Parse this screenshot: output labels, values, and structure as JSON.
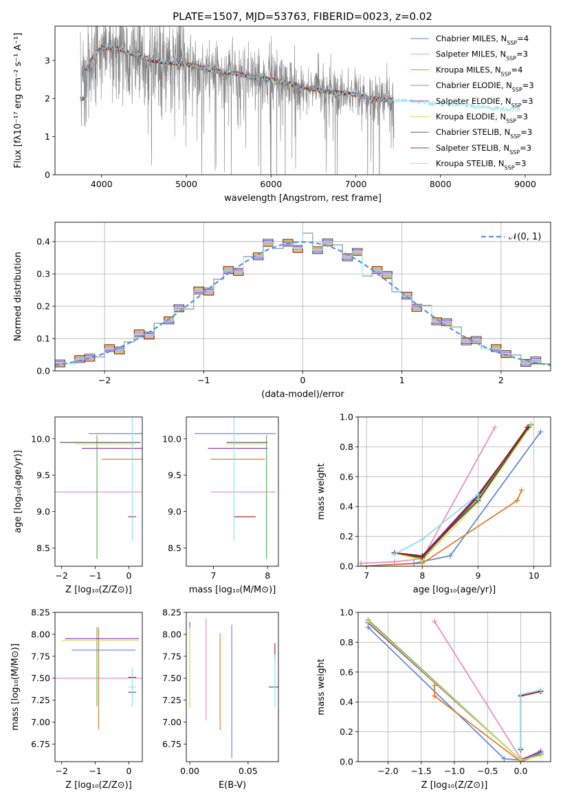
{
  "figure": {
    "title": "PLATE=1507, MJD=53763, FIBERID=0023, z=0.02"
  },
  "colors": {
    "data": "#808080",
    "axes": "#000000",
    "grid": "#b0b0b0",
    "gaussian": "#5b8fd9"
  },
  "models": [
    {
      "name": "Chabrier MILES",
      "nssp": "4",
      "color": "#5b84d8"
    },
    {
      "name": "Salpeter MILES",
      "nssp": "3",
      "color": "#e58ac0"
    },
    {
      "name": "Kroupa MILES",
      "nssp": "4",
      "color": "#dd7722"
    },
    {
      "name": "Chabrier ELODIE",
      "nssp": "3",
      "color": "#55aa55"
    },
    {
      "name": "Salpeter ELODIE",
      "nssp": "3",
      "color": "#8833aa"
    },
    {
      "name": "Kroupa ELODIE",
      "nssp": "3",
      "color": "#d4e060"
    },
    {
      "name": "Chabrier STELIB",
      "nssp": "3",
      "color": "#444444"
    },
    {
      "name": "Salpeter STELIB",
      "nssp": "3",
      "color": "#aa1111"
    },
    {
      "name": "Kroupa STELIB",
      "nssp": "3",
      "color": "#88ddee"
    }
  ],
  "chart_data": [
    {
      "id": "spectrum",
      "type": "line",
      "xlabel": "wavelength [Angstrom, rest frame]",
      "ylabel": "Flux [fλ10⁻¹⁷ erg cm⁻² s⁻¹ A⁻¹]",
      "xlim": [
        3450,
        9300
      ],
      "ylim": [
        0,
        3.9
      ],
      "xticks": [
        "4000",
        "5000",
        "6000",
        "7000",
        "8000",
        "9000"
      ],
      "yticks": [
        "0",
        "1",
        "2",
        "3"
      ],
      "continuum_x": [
        3780,
        3900,
        4000,
        4200,
        4400,
        4600,
        4800,
        5000,
        5200,
        5400,
        5600,
        5800,
        6000,
        6200,
        6400,
        6600,
        6800,
        7000,
        7200,
        7400,
        7600,
        7800,
        8000,
        8200,
        8400,
        8600,
        8800,
        9000
      ],
      "continuum_y": [
        2.6,
        3.1,
        3.35,
        3.3,
        3.15,
        3.0,
        2.95,
        2.9,
        2.8,
        2.7,
        2.65,
        2.55,
        2.5,
        2.4,
        2.3,
        2.2,
        2.15,
        2.1,
        2.0,
        1.95,
        1.95,
        1.9,
        1.85,
        1.85,
        1.8,
        1.75,
        1.72,
        1.75
      ],
      "noisy_range": [
        3750,
        7450
      ],
      "model_range": [
        3750,
        7450
      ],
      "legend": "upper right"
    },
    {
      "id": "residuals",
      "type": "line",
      "xlabel": "(data-model)/error",
      "ylabel": "Normed distribution",
      "xlim": [
        -2.5,
        2.5
      ],
      "ylim": [
        0,
        0.46
      ],
      "xticks": [
        "−2",
        "−1",
        "0",
        "1",
        "2"
      ],
      "yticks": [
        "0.0",
        "0.1",
        "0.2",
        "0.3",
        "0.4"
      ],
      "bin_width": 0.1,
      "bin_start": -2.5,
      "bin_offsets": [
        0,
        -0.005,
        0.004,
        0.01,
        -0.008,
        0.006,
        -0.012,
        0.009,
        -0.003
      ],
      "wiggle": [
        0.002,
        -0.004,
        0.006,
        0.0,
        -0.006,
        0.012,
        -0.01,
        0.004,
        0.015,
        -0.012,
        0.008,
        -0.003,
        0.01,
        -0.015,
        0.02,
        -0.01,
        0.006,
        0.012,
        -0.018,
        0.01,
        -0.005,
        0.02,
        -0.008,
        0.003,
        -0.022,
        0.028,
        -0.02,
        0.01,
        0.015,
        -0.008,
        0.024,
        -0.03,
        0.012,
        0.018,
        -0.01,
        0.004,
        -0.012,
        0.02,
        -0.006,
        0.01,
        0.016,
        -0.01,
        0.008,
        -0.004,
        0.012,
        0.002,
        0.01,
        -0.006,
        0.006,
        0.002
      ],
      "gaussian": {
        "mean": 0,
        "sigma": 1,
        "legend_label": "𝒩(0, 1)"
      },
      "legend": "upper right",
      "grid": true
    },
    {
      "id": "age-vs-Z",
      "type": "scatter",
      "xlabel": "Z [log₁₀(Z/Z⊙)]",
      "ylabel": "age  [log₁₀(age/yr)]",
      "xlim": [
        -2.2,
        0.4
      ],
      "ylim": [
        8.25,
        10.3
      ],
      "xticks": [
        "−2",
        "−1",
        "0"
      ],
      "yticks": [
        "8.5",
        "9.0",
        "9.5",
        "10.0"
      ],
      "points": [
        {
          "model": "Chabrier MILES",
          "x": 0.0,
          "y": 10.07,
          "xerr": 1.2,
          "yerr": 0.0
        },
        {
          "model": "Salpeter MILES",
          "x": -0.9,
          "y": 9.27,
          "xerr": 1.3,
          "yerr": 0.0
        },
        {
          "model": "Kroupa MILES",
          "x": -0.2,
          "y": 9.72,
          "xerr": 0.6,
          "yerr": 0.0
        },
        {
          "model": "Chabrier ELODIE",
          "x": -0.95,
          "y": 9.2,
          "xerr": 0.0,
          "yerr": 0.85
        },
        {
          "model": "Salpeter ELODIE",
          "x": -0.5,
          "y": 9.87,
          "xerr": 0.9,
          "yerr": 0.0
        },
        {
          "model": "Kroupa ELODIE",
          "x": -0.7,
          "y": 9.93,
          "xerr": 0.9,
          "yerr": 0.0
        },
        {
          "model": "Chabrier STELIB",
          "x": -0.85,
          "y": 9.95,
          "xerr": 1.2,
          "yerr": 0.0
        },
        {
          "model": "Salpeter STELIB",
          "x": 0.1,
          "y": 8.93,
          "xerr": 0.12,
          "yerr": 0.0
        },
        {
          "model": "Kroupa STELIB",
          "x": 0.1,
          "y": 9.6,
          "xerr": 0.0,
          "yerr": 1.0
        }
      ]
    },
    {
      "id": "age-vs-mass",
      "type": "scatter",
      "xlabel": "mass [log₁₀(M/M⊙)]",
      "ylabel": "",
      "xlim": [
        6.5,
        8.2
      ],
      "ylim": [
        8.25,
        10.3
      ],
      "xticks": [
        "7",
        "8"
      ],
      "yticks": [
        "8.5",
        "9.0",
        "9.5",
        "10.0"
      ],
      "points": [
        {
          "model": "Chabrier MILES",
          "x": 7.4,
          "y": 10.07,
          "xerr": 0.75,
          "yerr": 0.0
        },
        {
          "model": "Salpeter MILES",
          "x": 7.55,
          "y": 9.27,
          "xerr": 0.6,
          "yerr": 0.0
        },
        {
          "model": "Kroupa MILES",
          "x": 7.45,
          "y": 9.72,
          "xerr": 0.5,
          "yerr": 0.0
        },
        {
          "model": "Chabrier ELODIE",
          "x": 7.98,
          "y": 9.2,
          "xerr": 0.0,
          "yerr": 0.85
        },
        {
          "model": "Salpeter ELODIE",
          "x": 7.45,
          "y": 9.87,
          "xerr": 0.55,
          "yerr": 0.0
        },
        {
          "model": "Kroupa ELODIE",
          "x": 7.6,
          "y": 9.93,
          "xerr": 0.35,
          "yerr": 0.0
        },
        {
          "model": "Chabrier STELIB",
          "x": 7.62,
          "y": 9.95,
          "xerr": 0.38,
          "yerr": 0.0
        },
        {
          "model": "Salpeter STELIB",
          "x": 7.58,
          "y": 8.93,
          "xerr": 0.2,
          "yerr": 0.0
        },
        {
          "model": "Kroupa STELIB",
          "x": 7.38,
          "y": 9.6,
          "xerr": 0.0,
          "yerr": 1.0
        }
      ]
    },
    {
      "id": "mass-weight-vs-age",
      "type": "line",
      "xlabel": "age  [log₁₀(age/yr)]",
      "ylabel": "mass weight",
      "xlim": [
        6.85,
        10.3
      ],
      "ylim": [
        0,
        1.0
      ],
      "xticks": [
        "7",
        "8",
        "9",
        "10"
      ],
      "yticks": [
        "0.0",
        "0.2",
        "0.4",
        "0.6",
        "0.8",
        "1.0"
      ],
      "series": [
        {
          "model": "Chabrier MILES",
          "x": [
            6.9,
            7.85,
            8.5,
            10.12
          ],
          "y": [
            0.0,
            0.02,
            0.07,
            0.9
          ]
        },
        {
          "model": "Salpeter MILES",
          "x": [
            6.9,
            7.5,
            8.0,
            9.3
          ],
          "y": [
            0.02,
            0.03,
            0.05,
            0.93
          ]
        },
        {
          "model": "Kroupa MILES",
          "x": [
            6.9,
            8.0,
            9.7,
            9.78
          ],
          "y": [
            0.0,
            0.02,
            0.44,
            0.51
          ]
        },
        {
          "model": "Chabrier ELODIE",
          "x": [
            7.5,
            8.0,
            9.0,
            9.95
          ],
          "y": [
            0.09,
            0.05,
            0.46,
            0.95
          ]
        },
        {
          "model": "Salpeter ELODIE",
          "x": [
            7.5,
            8.0,
            9.0,
            9.9
          ],
          "y": [
            0.09,
            0.07,
            0.48,
            0.93
          ]
        },
        {
          "model": "Kroupa ELODIE",
          "x": [
            7.5,
            8.0,
            9.0,
            9.95
          ],
          "y": [
            0.09,
            0.04,
            0.43,
            0.94
          ]
        },
        {
          "model": "Chabrier STELIB",
          "x": [
            7.5,
            8.0,
            9.0,
            9.9
          ],
          "y": [
            0.09,
            0.07,
            0.44,
            0.93
          ]
        },
        {
          "model": "Salpeter STELIB",
          "x": [
            7.5,
            8.0,
            9.0,
            9.88
          ],
          "y": [
            0.09,
            0.06,
            0.47,
            0.93
          ]
        },
        {
          "model": "Kroupa STELIB",
          "x": [
            7.5,
            8.0,
            9.0,
            9.0
          ],
          "y": [
            0.08,
            0.18,
            0.48,
            0.45
          ]
        }
      ],
      "grid": true
    },
    {
      "id": "mass-vs-Z",
      "type": "scatter",
      "xlabel": "Z [log₁₀(Z/Z⊙)]",
      "ylabel": "mass [log₁₀(M/M⊙)]",
      "xlim": [
        -2.2,
        0.4
      ],
      "ylim": [
        6.55,
        8.25
      ],
      "xticks": [
        "−2",
        "−1",
        "0"
      ],
      "yticks": [
        "6.75",
        "7.00",
        "7.25",
        "7.50",
        "7.75",
        "8.00",
        "8.25"
      ],
      "points": [
        {
          "model": "Chabrier MILES",
          "x": -0.75,
          "y": 7.82,
          "xerr": 0.95,
          "yerr": 0.0
        },
        {
          "model": "Salpeter MILES",
          "x": -0.9,
          "y": 7.5,
          "xerr": 1.3,
          "yerr": 0.0
        },
        {
          "model": "Kroupa MILES",
          "x": -0.9,
          "y": 7.5,
          "xerr": 0.0,
          "yerr": 0.58
        },
        {
          "model": "Chabrier ELODIE",
          "x": -0.95,
          "y": 7.63,
          "xerr": 0.0,
          "yerr": 0.45
        },
        {
          "model": "Salpeter ELODIE",
          "x": -0.8,
          "y": 7.95,
          "xerr": 1.1,
          "yerr": 0.0
        },
        {
          "model": "Kroupa ELODIE",
          "x": -0.85,
          "y": 7.93,
          "xerr": 1.15,
          "yerr": 0.0
        },
        {
          "model": "Chabrier STELIB",
          "x": 0.1,
          "y": 7.34,
          "xerr": 0.12,
          "yerr": 0.0
        },
        {
          "model": "Salpeter STELIB",
          "x": 0.1,
          "y": 7.51,
          "xerr": 0.12,
          "yerr": 0.0
        },
        {
          "model": "Kroupa STELIB",
          "x": 0.1,
          "y": 7.4,
          "xerr": 0.12,
          "yerr": 0.22
        }
      ]
    },
    {
      "id": "mass-vs-EBV",
      "type": "scatter",
      "xlabel": "E(B-V)",
      "ylabel": "",
      "xlim": [
        -0.003,
        0.076
      ],
      "ylim": [
        6.55,
        8.25
      ],
      "xticks": [
        "0.00",
        "0.05"
      ],
      "yticks": [
        "6.75",
        "7.00",
        "7.25",
        "7.50",
        "7.75",
        "8.00",
        "8.25"
      ],
      "points": [
        {
          "model": "Chabrier MILES",
          "x": 0.036,
          "y": 7.35,
          "xerr": 0.0,
          "yerr": 0.76
        },
        {
          "model": "Salpeter MILES",
          "x": 0.014,
          "y": 7.6,
          "xerr": 0.0,
          "yerr": 0.58
        },
        {
          "model": "Kroupa MILES",
          "x": 0.026,
          "y": 7.46,
          "xerr": 0.0,
          "yerr": 0.55
        },
        {
          "model": "Chabrier ELODIE",
          "x": 0.0,
          "y": 7.62,
          "xerr": 0.0,
          "yerr": 0.46
        },
        {
          "model": "Salpeter ELODIE",
          "x": 0.0,
          "y": 8.1,
          "xerr": 0.0,
          "yerr": 0.04
        },
        {
          "model": "Kroupa ELODIE",
          "x": 0.0,
          "y": 7.62,
          "xerr": 0.0,
          "yerr": 0.46
        },
        {
          "model": "Chabrier STELIB",
          "x": 0.073,
          "y": 7.4,
          "xerr": 0.0,
          "yerr": 0.0
        },
        {
          "model": "Salpeter STELIB",
          "x": 0.073,
          "y": 7.8,
          "xerr": 0.0,
          "yerr": 0.1
        },
        {
          "model": "Kroupa STELIB",
          "x": 0.073,
          "y": 7.47,
          "xerr": 0.0,
          "yerr": 0.3
        }
      ]
    },
    {
      "id": "mass-weight-vs-Z",
      "type": "line",
      "xlabel": "Z [log₁₀(Z/Z⊙)]",
      "ylabel": "mass weight",
      "xlim": [
        -2.45,
        0.45
      ],
      "ylim": [
        0,
        1.0
      ],
      "xticks": [
        "−2.0",
        "−1.5",
        "−1.0",
        "−0.5",
        "0.0"
      ],
      "yticks": [
        "0.0",
        "0.2",
        "0.4",
        "0.6",
        "0.8",
        "1.0"
      ],
      "series": [
        {
          "model": "Chabrier MILES",
          "x": [
            -2.3,
            -0.25,
            0.0,
            0.3
          ],
          "y": [
            0.9,
            0.02,
            0.01,
            0.06
          ]
        },
        {
          "model": "Salpeter MILES",
          "x": [
            -1.3,
            0.0,
            0.3
          ],
          "y": [
            0.94,
            0.02,
            0.05
          ]
        },
        {
          "model": "Kroupa MILES",
          "x": [
            -1.3,
            -1.3,
            0.0,
            0.3
          ],
          "y": [
            0.51,
            0.44,
            0.0,
            0.05
          ]
        },
        {
          "model": "Chabrier ELODIE",
          "x": [
            -2.3,
            0.0,
            0.3
          ],
          "y": [
            0.95,
            0.01,
            0.05
          ]
        },
        {
          "model": "Salpeter ELODIE",
          "x": [
            -2.3,
            0.0,
            0.3
          ],
          "y": [
            0.93,
            0.01,
            0.07
          ]
        },
        {
          "model": "Kroupa ELODIE",
          "x": [
            -2.3,
            0.0,
            0.3
          ],
          "y": [
            0.94,
            0.01,
            0.04
          ]
        },
        {
          "model": "Chabrier STELIB",
          "x": [
            0.0,
            0.0,
            0.3
          ],
          "y": [
            0.08,
            0.44,
            0.47
          ]
        },
        {
          "model": "Salpeter STELIB",
          "x": [
            0.0,
            0.0,
            0.3
          ],
          "y": [
            0.09,
            0.44,
            0.47
          ]
        },
        {
          "model": "Kroupa STELIB",
          "x": [
            0.0,
            0.0,
            0.3
          ],
          "y": [
            0.09,
            0.45,
            0.48
          ]
        }
      ],
      "grid": true
    }
  ]
}
